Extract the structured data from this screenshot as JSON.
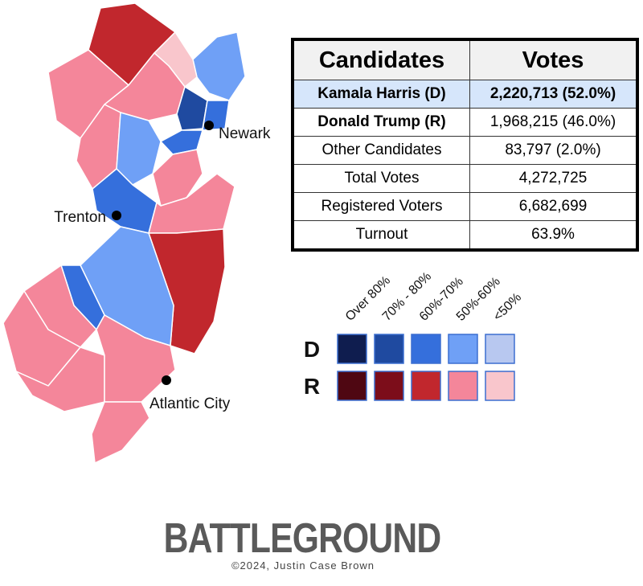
{
  "table": {
    "header": [
      "Candidates",
      "Votes"
    ],
    "rows": [
      [
        "Kamala Harris (D)",
        "2,220,713 (52.0%)"
      ],
      [
        "Donald Trump (R)",
        "1,968,215 (46.0%)"
      ],
      [
        "Other Candidates",
        "83,797 (2.0%)"
      ],
      [
        "Total Votes",
        "4,272,725"
      ],
      [
        "Registered Voters",
        "6,682,699"
      ],
      [
        "Turnout",
        "63.9%"
      ]
    ]
  },
  "cities": [
    "Newark",
    "Trenton",
    "Atlantic City"
  ],
  "legend": {
    "columns": [
      "Over 80%",
      "70% - 80%",
      "60%-70%",
      "50%-60%",
      "<50%"
    ],
    "rows": [
      {
        "label": "D",
        "colors": [
          "#0f1d4f",
          "#1f4aa0",
          "#356fdc",
          "#6fa0f6",
          "#b8c8f0"
        ]
      },
      {
        "label": "R",
        "colors": [
          "#4f0712",
          "#7c0d1a",
          "#c1272d",
          "#f4869a",
          "#f9c6cc"
        ]
      }
    ]
  },
  "logo": "BATTLEGROUND",
  "credit": "©2024, Justin Case Brown"
}
